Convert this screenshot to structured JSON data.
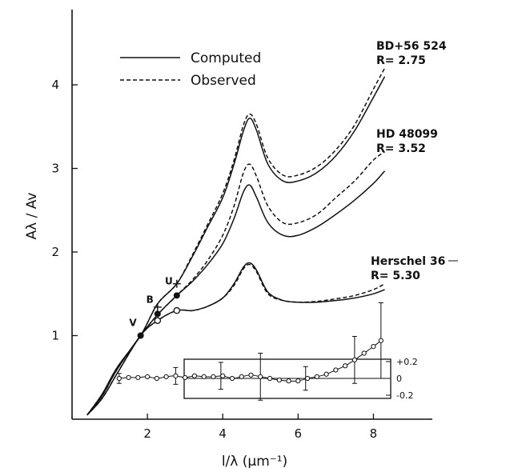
{
  "chart_data": {
    "type": "line",
    "title": "",
    "xlabel": "l/λ (μm⁻¹)",
    "ylabel": "Aλ / Av",
    "xlim": [
      0,
      9.5
    ],
    "ylim": [
      0,
      4.9
    ],
    "xticks": [
      2,
      4,
      6,
      8
    ],
    "yticks": [
      1,
      2,
      3,
      4
    ],
    "legend": {
      "placement": "top-left",
      "entries": [
        {
          "label": "Computed",
          "style": "solid"
        },
        {
          "label": "Observed",
          "style": "dashed"
        }
      ]
    },
    "curve_labels": [
      {
        "name": "BD+56 524",
        "r": "R= 2.75"
      },
      {
        "name": "HD 48099",
        "r": "R= 3.52"
      },
      {
        "name": "Herschel 36",
        "r": "R= 5.30"
      }
    ],
    "band_markers": [
      {
        "label": "V",
        "x": 1.82,
        "y": 1.0
      },
      {
        "label": "B",
        "x": 2.27,
        "y": 1.28
      },
      {
        "label": "U",
        "x": 2.78,
        "y": 1.5
      }
    ],
    "series": [
      {
        "curve": "BD+56 524",
        "style": "solid",
        "x": [
          0.4,
          0.8,
          1.2,
          1.82,
          2.27,
          2.78,
          3.2,
          3.6,
          4.0,
          4.3,
          4.55,
          4.72,
          4.9,
          5.2,
          5.6,
          6.0,
          6.5,
          7.0,
          7.5,
          8.0,
          8.3
        ],
        "y": [
          0.05,
          0.3,
          0.62,
          1.0,
          1.38,
          1.62,
          1.95,
          2.3,
          2.65,
          3.05,
          3.45,
          3.6,
          3.45,
          3.05,
          2.85,
          2.85,
          2.95,
          3.15,
          3.45,
          3.85,
          4.1
        ]
      },
      {
        "curve": "BD+56 524",
        "style": "dashed",
        "x": [
          0.4,
          0.8,
          1.2,
          1.82,
          2.27,
          2.78,
          3.2,
          3.6,
          4.0,
          4.3,
          4.55,
          4.72,
          4.9,
          5.2,
          5.6,
          6.0,
          6.5,
          7.0,
          7.5,
          8.0,
          8.3
        ],
        "y": [
          0.05,
          0.3,
          0.62,
          1.0,
          1.38,
          1.62,
          1.97,
          2.33,
          2.7,
          3.1,
          3.52,
          3.65,
          3.52,
          3.12,
          2.92,
          2.92,
          3.02,
          3.22,
          3.52,
          3.95,
          4.2
        ]
      },
      {
        "curve": "HD 48099",
        "style": "solid",
        "x": [
          0.4,
          0.8,
          1.2,
          1.82,
          2.27,
          2.78,
          3.2,
          3.6,
          4.0,
          4.3,
          4.55,
          4.72,
          4.9,
          5.2,
          5.6,
          6.0,
          6.5,
          7.0,
          7.5,
          8.0,
          8.3
        ],
        "y": [
          0.05,
          0.28,
          0.6,
          1.0,
          1.25,
          1.48,
          1.65,
          1.85,
          2.1,
          2.4,
          2.72,
          2.8,
          2.65,
          2.35,
          2.2,
          2.2,
          2.3,
          2.45,
          2.62,
          2.82,
          2.97
        ]
      },
      {
        "curve": "HD 48099",
        "style": "dashed",
        "x": [
          0.4,
          0.8,
          1.2,
          1.82,
          2.27,
          2.78,
          3.2,
          3.6,
          4.0,
          4.3,
          4.55,
          4.72,
          4.9,
          5.2,
          5.6,
          6.0,
          6.5,
          7.0,
          7.5,
          8.0,
          8.3
        ],
        "y": [
          0.05,
          0.28,
          0.6,
          1.0,
          1.25,
          1.48,
          1.67,
          1.9,
          2.2,
          2.55,
          2.95,
          3.05,
          2.9,
          2.55,
          2.35,
          2.35,
          2.45,
          2.65,
          2.85,
          3.1,
          3.2
        ]
      },
      {
        "curve": "Herschel 36",
        "style": "solid",
        "x": [
          0.4,
          0.8,
          1.2,
          1.82,
          2.27,
          2.78,
          3.2,
          3.6,
          4.0,
          4.3,
          4.55,
          4.72,
          4.9,
          5.2,
          5.6,
          6.0,
          6.5,
          7.0,
          7.5,
          8.0,
          8.3
        ],
        "y": [
          0.05,
          0.25,
          0.55,
          1.0,
          1.18,
          1.3,
          1.3,
          1.35,
          1.45,
          1.62,
          1.82,
          1.87,
          1.78,
          1.52,
          1.42,
          1.4,
          1.4,
          1.42,
          1.45,
          1.5,
          1.55
        ]
      },
      {
        "curve": "Herschel 36",
        "style": "dashed",
        "x": [
          0.4,
          0.8,
          1.2,
          1.82,
          2.27,
          2.78,
          3.2,
          3.6,
          4.0,
          4.3,
          4.55,
          4.72,
          4.9,
          5.2,
          5.6,
          6.0,
          6.5,
          7.0,
          7.5,
          8.0,
          8.3
        ],
        "y": [
          0.05,
          0.25,
          0.55,
          1.0,
          1.18,
          1.3,
          1.3,
          1.35,
          1.45,
          1.6,
          1.8,
          1.85,
          1.76,
          1.5,
          1.42,
          1.4,
          1.41,
          1.44,
          1.48,
          1.55,
          1.62
        ]
      }
    ],
    "observed_points": [
      {
        "shape": "filled",
        "x": 1.82,
        "y": 1.0
      },
      {
        "shape": "filled",
        "x": 2.27,
        "y": 1.26
      },
      {
        "shape": "filled",
        "x": 2.78,
        "y": 1.48
      },
      {
        "shape": "plus",
        "x": 2.27,
        "y": 1.34
      },
      {
        "shape": "plus",
        "x": 2.78,
        "y": 1.62
      },
      {
        "shape": "open",
        "x": 2.27,
        "y": 1.18
      },
      {
        "shape": "open",
        "x": 2.78,
        "y": 1.3
      }
    ],
    "residuals": {
      "yticks": [
        "+0.2",
        "0",
        "-0.2"
      ],
      "x": [
        1.25,
        1.5,
        1.75,
        2.0,
        2.25,
        2.5,
        2.75,
        3.0,
        3.25,
        3.5,
        3.75,
        4.0,
        4.25,
        4.5,
        4.75,
        5.0,
        5.25,
        5.5,
        5.75,
        6.0,
        6.25,
        6.5,
        6.75,
        7.0,
        7.25,
        7.5,
        7.75,
        8.0,
        8.2
      ],
      "y": [
        0.0,
        0.01,
        0.01,
        0.02,
        0.0,
        0.02,
        0.03,
        0.01,
        0.03,
        0.02,
        0.02,
        0.03,
        0.0,
        0.02,
        0.04,
        0.02,
        0.0,
        -0.02,
        -0.03,
        -0.03,
        0.0,
        0.02,
        0.05,
        0.1,
        0.15,
        0.22,
        0.3,
        0.38,
        0.45
      ],
      "errorbars": [
        {
          "x": 1.25,
          "err": 0.06
        },
        {
          "x": 2.75,
          "err": 0.1
        },
        {
          "x": 3.95,
          "err": 0.16
        },
        {
          "x": 5.0,
          "err": 0.28
        },
        {
          "x": 6.2,
          "err": 0.14
        },
        {
          "x": 7.5,
          "err": 0.28
        },
        {
          "x": 8.2,
          "err": 0.45
        }
      ]
    }
  }
}
